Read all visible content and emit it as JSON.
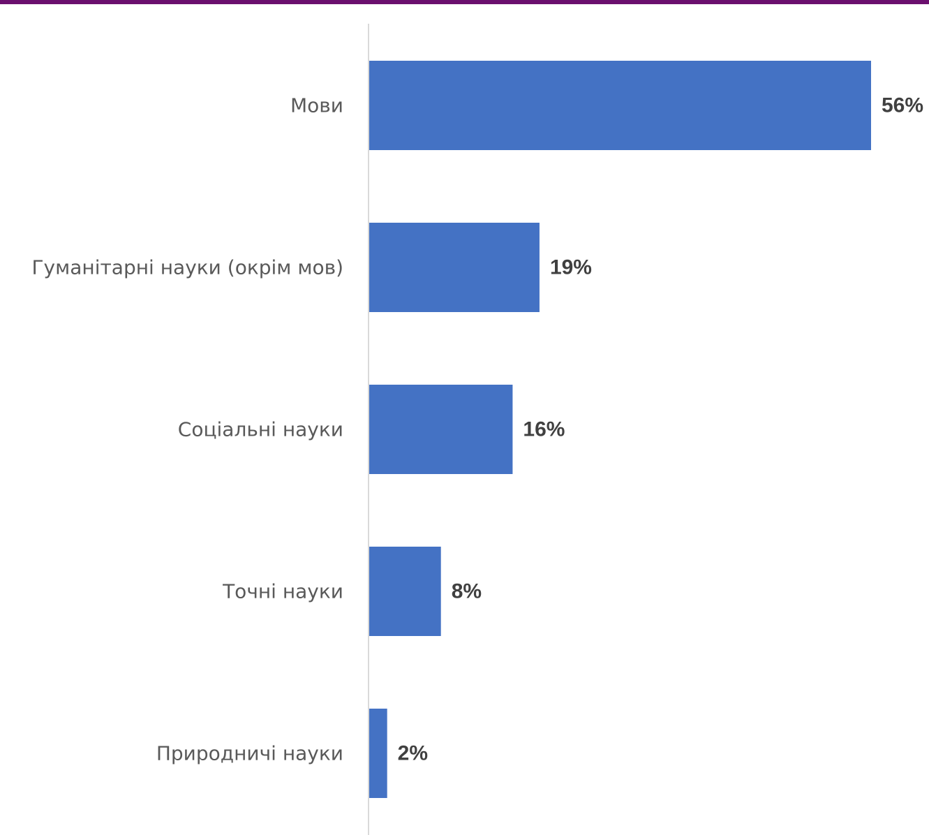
{
  "colors": {
    "top_bar": "#6b0f6e",
    "bar": "#4472c4",
    "axis": "#d9d9d9"
  },
  "chart_data": {
    "type": "bar",
    "orientation": "horizontal",
    "categories": [
      "Мови",
      "Гуманітарні науки (окрім мов)",
      "Соціальні науки",
      "Точні науки",
      "Природничі науки"
    ],
    "values": [
      56,
      19,
      16,
      8,
      2
    ],
    "value_labels": [
      "56%",
      "19%",
      "16%",
      "8%",
      "2%"
    ],
    "unit": "%",
    "xlim": [
      0,
      60
    ],
    "grid": false,
    "legend": "none"
  }
}
